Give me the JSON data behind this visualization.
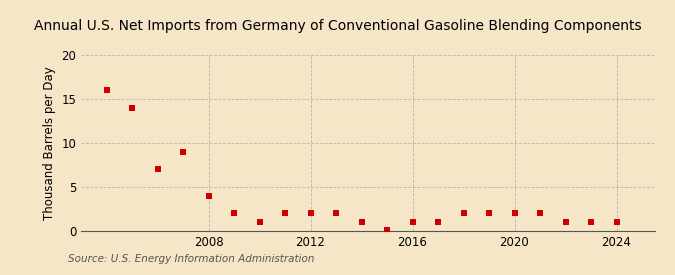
{
  "title": "Annual U.S. Net Imports from Germany of Conventional Gasoline Blending Components",
  "ylabel": "Thousand Barrels per Day",
  "source": "Source: U.S. Energy Information Administration",
  "background_color": "#f5e6c8",
  "marker_color": "#cc0000",
  "years": [
    2004,
    2005,
    2006,
    2007,
    2008,
    2009,
    2010,
    2011,
    2012,
    2013,
    2014,
    2015,
    2016,
    2017,
    2018,
    2019,
    2020,
    2021,
    2022,
    2023,
    2024
  ],
  "values": [
    16.0,
    14.0,
    7.0,
    9.0,
    4.0,
    2.0,
    1.0,
    2.0,
    2.0,
    2.0,
    1.0,
    0.1,
    1.0,
    1.0,
    2.0,
    2.0,
    2.0,
    2.0,
    1.0,
    1.0,
    1.0
  ],
  "xlim": [
    2003,
    2025.5
  ],
  "ylim": [
    0,
    20
  ],
  "yticks": [
    0,
    5,
    10,
    15,
    20
  ],
  "xticks": [
    2008,
    2012,
    2016,
    2020,
    2024
  ],
  "grid_color": "#b0b0b0",
  "title_fontsize": 10,
  "label_fontsize": 8.5,
  "tick_fontsize": 8.5,
  "source_fontsize": 7.5
}
